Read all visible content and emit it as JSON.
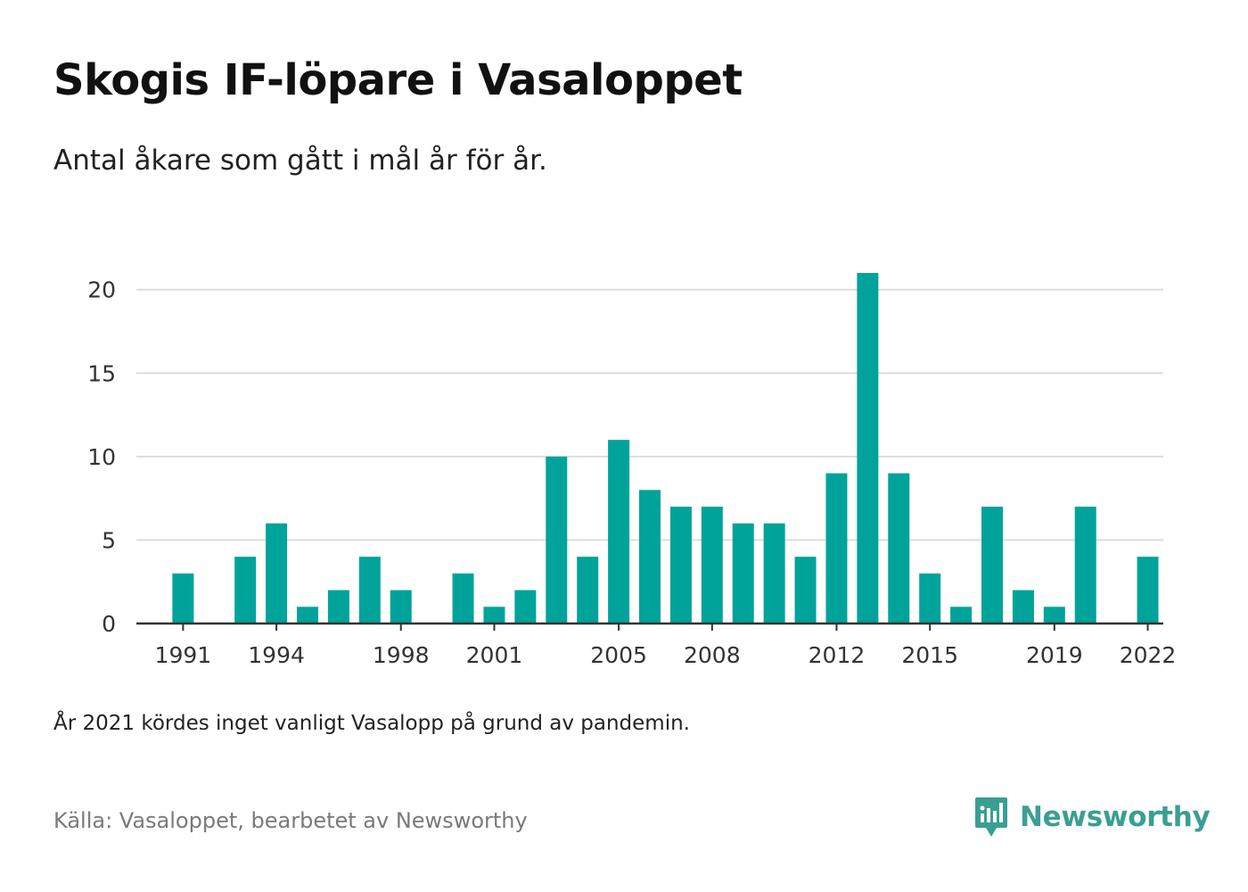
{
  "title": "Skogis IF-löpare i Vasaloppet",
  "subtitle": "Antal åkare som gått i mål år för år.",
  "footnote": "År 2021 kördes inget vanligt Vasalopp på grund av pandemin.",
  "source": "Källa: Vasaloppet, bearbetet av Newsworthy",
  "brand": {
    "name": "Newsworthy",
    "icon": "newsworthy-logo-icon"
  },
  "colors": {
    "bar": "#00a39a",
    "grid": "#dddddd",
    "axis": "#333333",
    "brand": "#3a9f92"
  },
  "chart_data": {
    "type": "bar",
    "categories": [
      "1990",
      "1991",
      "1992",
      "1993",
      "1994",
      "1995",
      "1996",
      "1997",
      "1998",
      "1999",
      "2000",
      "2001",
      "2002",
      "2003",
      "2004",
      "2005",
      "2006",
      "2007",
      "2008",
      "2009",
      "2010",
      "2011",
      "2012",
      "2013",
      "2014",
      "2015",
      "2016",
      "2017",
      "2018",
      "2019",
      "2020",
      "2021",
      "2022"
    ],
    "values": [
      0,
      3,
      0,
      4,
      6,
      1,
      2,
      4,
      2,
      0,
      3,
      1,
      2,
      10,
      4,
      11,
      8,
      7,
      7,
      6,
      6,
      4,
      9,
      21,
      9,
      3,
      1,
      7,
      2,
      1,
      7,
      0,
      4
    ],
    "x_tick_labels": [
      "1991",
      "1994",
      "1998",
      "2001",
      "2005",
      "2008",
      "2012",
      "2015",
      "2019",
      "2022"
    ],
    "y_ticks": [
      0,
      5,
      10,
      15,
      20
    ],
    "ylim": [
      0,
      21
    ],
    "grid": true
  }
}
